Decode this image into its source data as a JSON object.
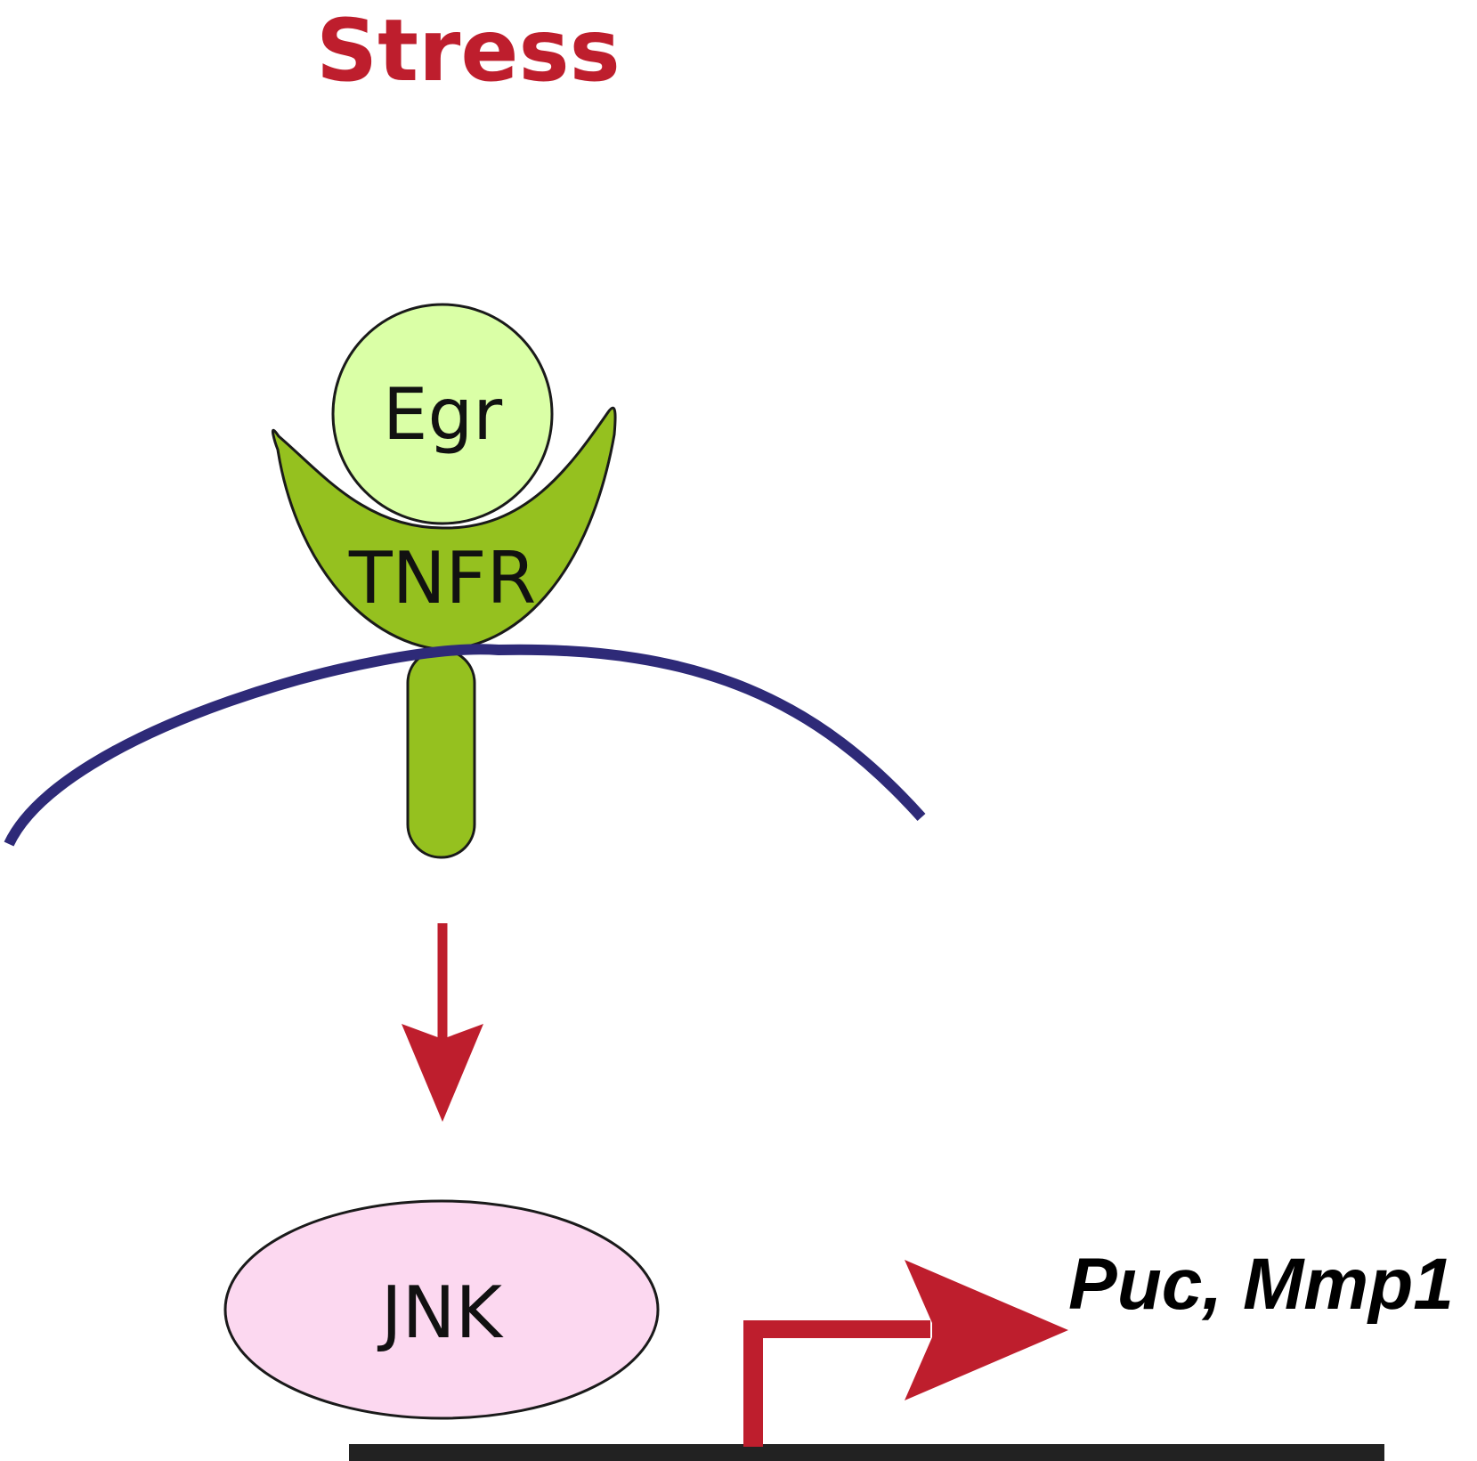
{
  "stimulus": {
    "label": "Stress"
  },
  "ligand": {
    "label": "Egr"
  },
  "receptor": {
    "label": "TNFR"
  },
  "kinase": {
    "label": "JNK"
  },
  "target_genes": {
    "label": "Puc, Mmp1"
  },
  "colors": {
    "stress_red": "#BE1E2D",
    "membrane": "#2E2A78",
    "receptor_fill": "#95C11F",
    "ligand_fill": "#DAFFA6",
    "jnk_fill": "#FCD8F0",
    "dna": "#222222",
    "outline": "#1A1A1A"
  }
}
